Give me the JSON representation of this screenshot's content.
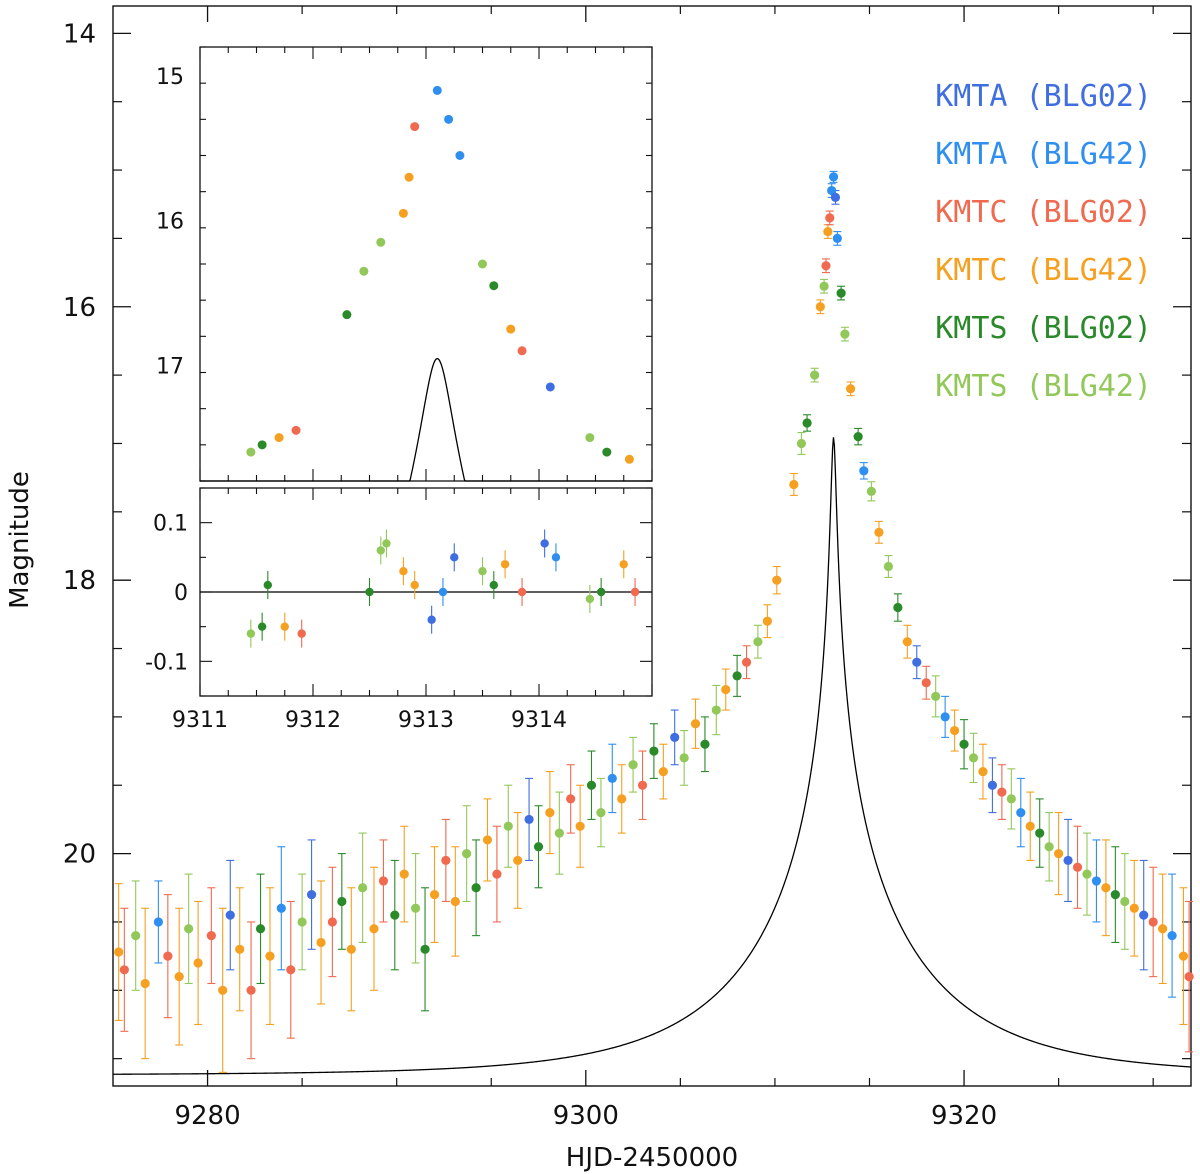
{
  "chart_data": [
    {
      "id": "main",
      "type": "scatter",
      "xlabel": "HJD-2450000",
      "ylabel": "Magnitude",
      "xlim": [
        9275,
        9332
      ],
      "ylim": [
        21.7,
        13.8
      ],
      "y_inverted": true,
      "xticks": [
        9280,
        9300,
        9320
      ],
      "xticks_minor": [
        9285,
        9290,
        9295,
        9305,
        9310,
        9315,
        9325,
        9330
      ],
      "yticks": [
        14,
        16,
        18,
        20
      ],
      "yticks_minor": [
        14.5,
        15,
        15.5,
        16.5,
        17,
        17.5,
        18.5,
        19,
        19.5,
        20.5,
        21,
        21.5
      ],
      "model": {
        "t0": 9313.1,
        "u0": 0.0136,
        "tE": 9.2,
        "mbase": 21.62,
        "fs": 1.0
      },
      "series": [
        {
          "name": "KMTA (BLG02)",
          "color": "#3f6ee0",
          "legend": "KMTA (BLG02)"
        },
        {
          "name": "KMTA (BLG42)",
          "color": "#2f8ff0",
          "legend": "KMTA (BLG42)"
        },
        {
          "name": "KMTC (BLG02)",
          "color": "#f06a50",
          "legend": "KMTC (BLG02)"
        },
        {
          "name": "KMTC (BLG42)",
          "color": "#f5a020",
          "legend": "KMTC (BLG42)"
        },
        {
          "name": "KMTS (BLG02)",
          "color": "#2a8a2a",
          "legend": "KMTS (BLG02)"
        },
        {
          "name": "KMTS (BLG42)",
          "color": "#92c85a",
          "legend": "KMTS (BLG42)"
        }
      ],
      "points": [
        [
          9275.3,
          20.72,
          0.5,
          3
        ],
        [
          9275.6,
          20.85,
          0.45,
          2
        ],
        [
          9276.2,
          20.6,
          0.4,
          5
        ],
        [
          9276.7,
          20.95,
          0.55,
          3
        ],
        [
          9277.4,
          20.5,
          0.3,
          1
        ],
        [
          9277.9,
          20.75,
          0.45,
          2
        ],
        [
          9278.5,
          20.9,
          0.5,
          3
        ],
        [
          9279.0,
          20.55,
          0.4,
          5
        ],
        [
          9279.5,
          20.8,
          0.45,
          3
        ],
        [
          9280.2,
          20.6,
          0.35,
          2
        ],
        [
          9280.8,
          21.0,
          0.6,
          3
        ],
        [
          9281.2,
          20.45,
          0.4,
          0
        ],
        [
          9281.7,
          20.7,
          0.45,
          3
        ],
        [
          9282.3,
          21.0,
          0.5,
          2
        ],
        [
          9282.8,
          20.55,
          0.4,
          4
        ],
        [
          9283.3,
          20.75,
          0.5,
          3
        ],
        [
          9283.9,
          20.4,
          0.45,
          1
        ],
        [
          9284.4,
          20.85,
          0.5,
          2
        ],
        [
          9285.0,
          20.5,
          0.35,
          5
        ],
        [
          9285.5,
          20.3,
          0.4,
          0
        ],
        [
          9286.0,
          20.65,
          0.45,
          3
        ],
        [
          9286.6,
          20.5,
          0.4,
          2
        ],
        [
          9287.1,
          20.35,
          0.35,
          4
        ],
        [
          9287.6,
          20.7,
          0.45,
          3
        ],
        [
          9288.2,
          20.25,
          0.4,
          5
        ],
        [
          9288.8,
          20.55,
          0.45,
          3
        ],
        [
          9289.3,
          20.2,
          0.3,
          2
        ],
        [
          9289.9,
          20.45,
          0.4,
          4
        ],
        [
          9290.4,
          20.15,
          0.35,
          3
        ],
        [
          9291.0,
          20.4,
          0.4,
          5
        ],
        [
          9291.5,
          20.7,
          0.45,
          4
        ],
        [
          9292.0,
          20.3,
          0.35,
          3
        ],
        [
          9292.6,
          20.05,
          0.3,
          2
        ],
        [
          9293.1,
          20.35,
          0.4,
          3
        ],
        [
          9293.7,
          20.0,
          0.35,
          5
        ],
        [
          9294.2,
          20.25,
          0.35,
          4
        ],
        [
          9294.8,
          19.9,
          0.3,
          3
        ],
        [
          9295.3,
          20.15,
          0.35,
          2
        ],
        [
          9295.9,
          19.8,
          0.3,
          5
        ],
        [
          9296.4,
          20.05,
          0.35,
          3
        ],
        [
          9297.0,
          19.75,
          0.3,
          0
        ],
        [
          9297.5,
          19.95,
          0.3,
          4
        ],
        [
          9298.1,
          19.7,
          0.3,
          3
        ],
        [
          9298.6,
          19.85,
          0.3,
          5
        ],
        [
          9299.2,
          19.6,
          0.25,
          2
        ],
        [
          9299.7,
          19.8,
          0.3,
          3
        ],
        [
          9300.3,
          19.5,
          0.25,
          4
        ],
        [
          9300.8,
          19.7,
          0.25,
          5
        ],
        [
          9301.4,
          19.45,
          0.25,
          1
        ],
        [
          9301.9,
          19.6,
          0.25,
          3
        ],
        [
          9302.5,
          19.35,
          0.2,
          5
        ],
        [
          9303.0,
          19.5,
          0.25,
          2
        ],
        [
          9303.6,
          19.25,
          0.2,
          4
        ],
        [
          9304.1,
          19.4,
          0.2,
          3
        ],
        [
          9304.7,
          19.15,
          0.2,
          0
        ],
        [
          9305.2,
          19.3,
          0.2,
          5
        ],
        [
          9305.8,
          19.05,
          0.18,
          3
        ],
        [
          9306.3,
          19.2,
          0.2,
          4
        ],
        [
          9306.9,
          18.95,
          0.18,
          5
        ],
        [
          9307.4,
          18.8,
          0.15,
          3
        ],
        [
          9308.0,
          18.7,
          0.15,
          4
        ],
        [
          9308.5,
          18.6,
          0.12,
          2
        ],
        [
          9309.1,
          18.45,
          0.12,
          5
        ],
        [
          9309.6,
          18.3,
          0.12,
          3
        ],
        [
          9310.1,
          18.0,
          0.1,
          3
        ],
        [
          9311.0,
          17.3,
          0.08,
          3
        ],
        [
          9311.4,
          17.0,
          0.08,
          5
        ],
        [
          9311.7,
          16.85,
          0.06,
          4
        ],
        [
          9312.1,
          16.5,
          0.05,
          5
        ],
        [
          9312.4,
          16.0,
          0.05,
          3
        ],
        [
          9312.6,
          15.85,
          0.05,
          5
        ],
        [
          9312.7,
          15.7,
          0.05,
          2
        ],
        [
          9312.8,
          15.45,
          0.05,
          3
        ],
        [
          9312.9,
          15.35,
          0.05,
          2
        ],
        [
          9313.0,
          15.15,
          0.05,
          1
        ],
        [
          9313.1,
          15.05,
          0.04,
          1
        ],
        [
          9313.2,
          15.2,
          0.05,
          0
        ],
        [
          9313.3,
          15.5,
          0.05,
          1
        ],
        [
          9313.5,
          15.9,
          0.05,
          4
        ],
        [
          9313.7,
          16.2,
          0.05,
          5
        ],
        [
          9314.0,
          16.6,
          0.05,
          3
        ],
        [
          9314.4,
          16.95,
          0.06,
          4
        ],
        [
          9314.7,
          17.2,
          0.06,
          1
        ],
        [
          9315.1,
          17.35,
          0.07,
          5
        ],
        [
          9315.5,
          17.65,
          0.08,
          3
        ],
        [
          9316.0,
          17.9,
          0.08,
          5
        ],
        [
          9316.5,
          18.2,
          0.1,
          4
        ],
        [
          9317.0,
          18.45,
          0.12,
          3
        ],
        [
          9317.5,
          18.6,
          0.12,
          0
        ],
        [
          9318.0,
          18.75,
          0.12,
          2
        ],
        [
          9318.5,
          18.85,
          0.15,
          5
        ],
        [
          9319.0,
          19.0,
          0.15,
          1
        ],
        [
          9319.5,
          19.1,
          0.15,
          3
        ],
        [
          9320.0,
          19.2,
          0.18,
          4
        ],
        [
          9320.5,
          19.3,
          0.18,
          5
        ],
        [
          9321.0,
          19.4,
          0.2,
          3
        ],
        [
          9321.5,
          19.5,
          0.2,
          0
        ],
        [
          9322.0,
          19.55,
          0.2,
          2
        ],
        [
          9322.5,
          19.6,
          0.22,
          5
        ],
        [
          9323.0,
          19.7,
          0.25,
          1
        ],
        [
          9323.5,
          19.8,
          0.25,
          3
        ],
        [
          9324.0,
          19.85,
          0.25,
          4
        ],
        [
          9324.5,
          19.95,
          0.25,
          5
        ],
        [
          9325.0,
          20.0,
          0.3,
          3
        ],
        [
          9325.5,
          20.05,
          0.3,
          0
        ],
        [
          9326.0,
          20.1,
          0.3,
          2
        ],
        [
          9326.5,
          20.15,
          0.3,
          5
        ],
        [
          9327.0,
          20.2,
          0.3,
          1
        ],
        [
          9327.5,
          20.25,
          0.35,
          3
        ],
        [
          9328.0,
          20.3,
          0.35,
          4
        ],
        [
          9328.5,
          20.35,
          0.35,
          5
        ],
        [
          9329.0,
          20.4,
          0.35,
          3
        ],
        [
          9329.5,
          20.45,
          0.4,
          0
        ],
        [
          9330.0,
          20.5,
          0.4,
          2
        ],
        [
          9330.5,
          20.55,
          0.4,
          3
        ],
        [
          9331.0,
          20.6,
          0.45,
          1
        ],
        [
          9331.6,
          20.75,
          0.5,
          3
        ],
        [
          9331.9,
          20.9,
          0.55,
          2
        ]
      ]
    },
    {
      "id": "inset-top",
      "type": "scatter",
      "xlim": [
        9311,
        9315
      ],
      "ylim": [
        17.8,
        14.8
      ],
      "y_inverted": true,
      "yticks": [
        15,
        16,
        17
      ],
      "points": [
        [
          9311.45,
          17.6,
          5
        ],
        [
          9311.55,
          17.55,
          4
        ],
        [
          9311.7,
          17.5,
          3
        ],
        [
          9311.85,
          17.45,
          2
        ],
        [
          9312.3,
          16.65,
          4
        ],
        [
          9312.45,
          16.35,
          5
        ],
        [
          9312.6,
          16.15,
          5
        ],
        [
          9312.8,
          15.95,
          3
        ],
        [
          9312.85,
          15.7,
          3
        ],
        [
          9312.9,
          15.35,
          2
        ],
        [
          9313.1,
          15.1,
          1
        ],
        [
          9313.2,
          15.3,
          1
        ],
        [
          9313.3,
          15.55,
          1
        ],
        [
          9313.5,
          16.3,
          5
        ],
        [
          9313.6,
          16.45,
          4
        ],
        [
          9313.75,
          16.75,
          3
        ],
        [
          9313.85,
          16.9,
          2
        ],
        [
          9314.1,
          17.15,
          0
        ],
        [
          9314.45,
          17.5,
          5
        ],
        [
          9314.6,
          17.6,
          4
        ],
        [
          9314.8,
          17.65,
          3
        ]
      ]
    },
    {
      "id": "inset-bottom",
      "type": "scatter",
      "xlim": [
        9311,
        9315
      ],
      "ylim": [
        -0.15,
        0.15
      ],
      "xticks": [
        9311,
        9312,
        9313,
        9314
      ],
      "yticks": [
        -0.1,
        0,
        0.1
      ],
      "zero_line": true,
      "points": [
        [
          9311.45,
          -0.06,
          5
        ],
        [
          9311.55,
          -0.05,
          4
        ],
        [
          9311.6,
          0.01,
          4
        ],
        [
          9311.75,
          -0.05,
          3
        ],
        [
          9311.9,
          -0.06,
          2
        ],
        [
          9312.5,
          0.0,
          4
        ],
        [
          9312.6,
          0.06,
          5
        ],
        [
          9312.65,
          0.07,
          5
        ],
        [
          9312.8,
          0.03,
          3
        ],
        [
          9312.9,
          0.01,
          3
        ],
        [
          9313.05,
          -0.04,
          0
        ],
        [
          9313.15,
          0.0,
          1
        ],
        [
          9313.25,
          0.05,
          0
        ],
        [
          9313.5,
          0.03,
          5
        ],
        [
          9313.6,
          0.01,
          4
        ],
        [
          9313.7,
          0.04,
          3
        ],
        [
          9313.85,
          0.0,
          2
        ],
        [
          9314.05,
          0.07,
          0
        ],
        [
          9314.15,
          0.05,
          1
        ],
        [
          9314.45,
          -0.01,
          5
        ],
        [
          9314.55,
          0.0,
          4
        ],
        [
          9314.75,
          0.04,
          3
        ],
        [
          9314.85,
          0.0,
          2
        ]
      ]
    }
  ]
}
